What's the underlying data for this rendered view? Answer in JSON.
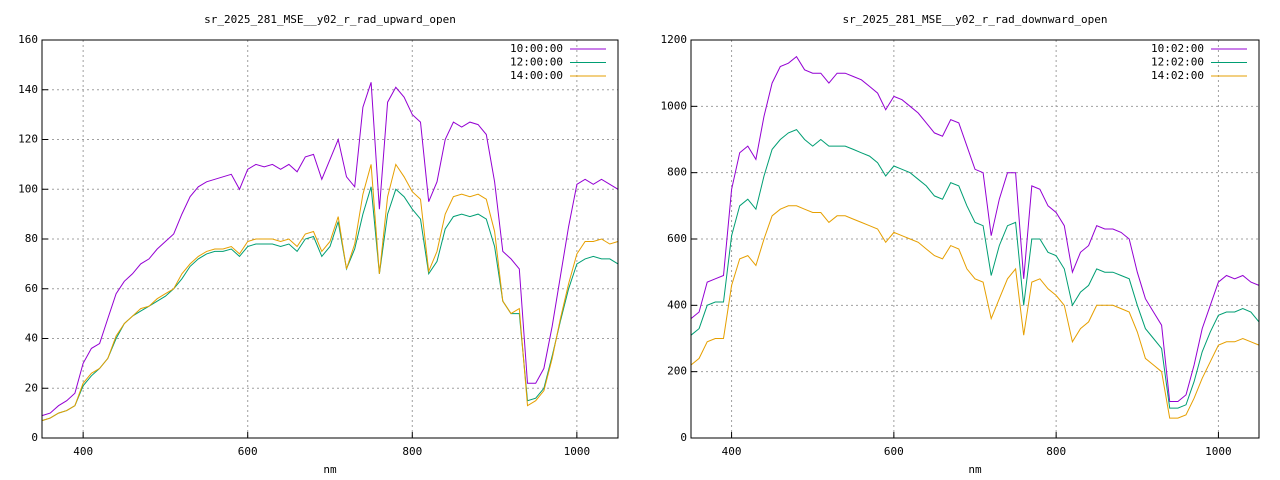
{
  "chart_data": [
    {
      "type": "line",
      "title": "sr_2025_281_MSE__y02_r_rad_upward_open",
      "x_label": "nm",
      "xlim": [
        350,
        1050
      ],
      "xticks": [
        400,
        600,
        800,
        1000
      ],
      "ylim": [
        0,
        160
      ],
      "yticks": [
        0,
        20,
        40,
        60,
        80,
        100,
        120,
        140,
        160
      ],
      "grid": true,
      "legend": "top-right",
      "x": [
        350,
        360,
        370,
        380,
        390,
        400,
        410,
        420,
        430,
        440,
        450,
        460,
        470,
        480,
        490,
        500,
        510,
        520,
        530,
        540,
        550,
        560,
        570,
        580,
        590,
        600,
        610,
        620,
        630,
        640,
        650,
        660,
        670,
        680,
        690,
        700,
        710,
        720,
        730,
        740,
        750,
        760,
        770,
        780,
        790,
        800,
        810,
        820,
        830,
        840,
        850,
        860,
        870,
        880,
        890,
        900,
        910,
        920,
        930,
        940,
        950,
        960,
        970,
        980,
        990,
        1000,
        1010,
        1020,
        1030,
        1040,
        1050
      ],
      "series": [
        {
          "name": "10:00:00",
          "color": "#9400d3",
          "values": [
            9,
            10,
            13,
            15,
            18,
            30,
            36,
            38,
            48,
            58,
            63,
            66,
            70,
            72,
            76,
            79,
            82,
            90,
            97,
            101,
            103,
            104,
            105,
            106,
            100,
            108,
            110,
            109,
            110,
            108,
            110,
            107,
            113,
            114,
            104,
            112,
            120,
            105,
            101,
            133,
            143,
            92,
            135,
            141,
            137,
            130,
            127,
            95,
            103,
            120,
            127,
            125,
            127,
            126,
            122,
            103,
            75,
            72,
            68,
            22,
            22,
            28,
            45,
            65,
            85,
            102,
            104,
            102,
            104,
            102,
            100
          ]
        },
        {
          "name": "12:00:00",
          "color": "#009e73",
          "values": [
            7,
            8,
            10,
            11,
            13,
            21,
            25,
            28,
            32,
            40,
            46,
            49,
            51,
            53,
            55,
            57,
            60,
            64,
            69,
            72,
            74,
            75,
            75,
            76,
            73,
            77,
            78,
            78,
            78,
            77,
            78,
            75,
            80,
            81,
            73,
            77,
            87,
            68,
            76,
            90,
            101,
            66,
            90,
            100,
            97,
            92,
            88,
            66,
            71,
            84,
            89,
            90,
            89,
            90,
            88,
            77,
            55,
            50,
            50,
            15,
            16,
            20,
            33,
            47,
            60,
            70,
            72,
            73,
            72,
            72,
            70
          ]
        },
        {
          "name": "14:00:00",
          "color": "#e69f00",
          "values": [
            7,
            8,
            10,
            11,
            13,
            22,
            26,
            28,
            32,
            41,
            46,
            49,
            52,
            53,
            56,
            58,
            60,
            66,
            70,
            73,
            75,
            76,
            76,
            77,
            74,
            79,
            80,
            80,
            80,
            79,
            80,
            77,
            82,
            83,
            75,
            79,
            89,
            68,
            78,
            98,
            110,
            66,
            97,
            110,
            105,
            99,
            96,
            67,
            75,
            90,
            97,
            98,
            97,
            98,
            96,
            83,
            55,
            50,
            52,
            13,
            15,
            19,
            32,
            48,
            62,
            74,
            79,
            79,
            80,
            78,
            79
          ]
        }
      ]
    },
    {
      "type": "line",
      "title": "sr_2025_281_MSE__y02_r_rad_downward_open",
      "x_label": "nm",
      "xlim": [
        350,
        1050
      ],
      "xticks": [
        400,
        600,
        800,
        1000
      ],
      "ylim": [
        0,
        1200
      ],
      "yticks": [
        0,
        200,
        400,
        600,
        800,
        1000,
        1200
      ],
      "grid": true,
      "legend": "top-right",
      "x": [
        350,
        360,
        370,
        380,
        390,
        400,
        410,
        420,
        430,
        440,
        450,
        460,
        470,
        480,
        490,
        500,
        510,
        520,
        530,
        540,
        550,
        560,
        570,
        580,
        590,
        600,
        610,
        620,
        630,
        640,
        650,
        660,
        670,
        680,
        690,
        700,
        710,
        720,
        730,
        740,
        750,
        760,
        770,
        780,
        790,
        800,
        810,
        820,
        830,
        840,
        850,
        860,
        870,
        880,
        890,
        900,
        910,
        920,
        930,
        940,
        950,
        960,
        970,
        980,
        990,
        1000,
        1010,
        1020,
        1030,
        1040,
        1050
      ],
      "series": [
        {
          "name": "10:02:00",
          "color": "#9400d3",
          "values": [
            360,
            380,
            470,
            480,
            490,
            750,
            860,
            880,
            840,
            970,
            1070,
            1120,
            1130,
            1150,
            1110,
            1100,
            1100,
            1070,
            1100,
            1100,
            1090,
            1080,
            1060,
            1040,
            990,
            1030,
            1020,
            1000,
            980,
            950,
            920,
            910,
            960,
            950,
            880,
            810,
            800,
            610,
            720,
            800,
            800,
            480,
            760,
            750,
            700,
            680,
            640,
            500,
            560,
            580,
            640,
            630,
            630,
            620,
            600,
            500,
            420,
            380,
            340,
            110,
            110,
            130,
            220,
            330,
            400,
            470,
            490,
            480,
            490,
            470,
            460
          ]
        },
        {
          "name": "12:02:00",
          "color": "#009e73",
          "values": [
            310,
            330,
            400,
            410,
            410,
            610,
            700,
            720,
            690,
            790,
            870,
            900,
            920,
            930,
            900,
            880,
            900,
            880,
            880,
            880,
            870,
            860,
            850,
            830,
            790,
            820,
            810,
            800,
            780,
            760,
            730,
            720,
            770,
            760,
            700,
            650,
            640,
            490,
            580,
            640,
            650,
            400,
            600,
            600,
            560,
            550,
            510,
            400,
            440,
            460,
            510,
            500,
            500,
            490,
            480,
            400,
            330,
            300,
            270,
            90,
            90,
            100,
            170,
            260,
            320,
            370,
            380,
            380,
            390,
            380,
            350
          ]
        },
        {
          "name": "14:02:00",
          "color": "#e69f00",
          "values": [
            220,
            240,
            290,
            300,
            300,
            460,
            540,
            550,
            520,
            600,
            670,
            690,
            700,
            700,
            690,
            680,
            680,
            650,
            670,
            670,
            660,
            650,
            640,
            630,
            590,
            620,
            610,
            600,
            590,
            570,
            550,
            540,
            580,
            570,
            510,
            480,
            470,
            360,
            420,
            480,
            510,
            310,
            470,
            480,
            450,
            430,
            400,
            290,
            330,
            350,
            400,
            400,
            400,
            390,
            380,
            320,
            240,
            220,
            200,
            60,
            60,
            70,
            120,
            180,
            230,
            280,
            290,
            290,
            300,
            290,
            280
          ]
        }
      ]
    }
  ]
}
